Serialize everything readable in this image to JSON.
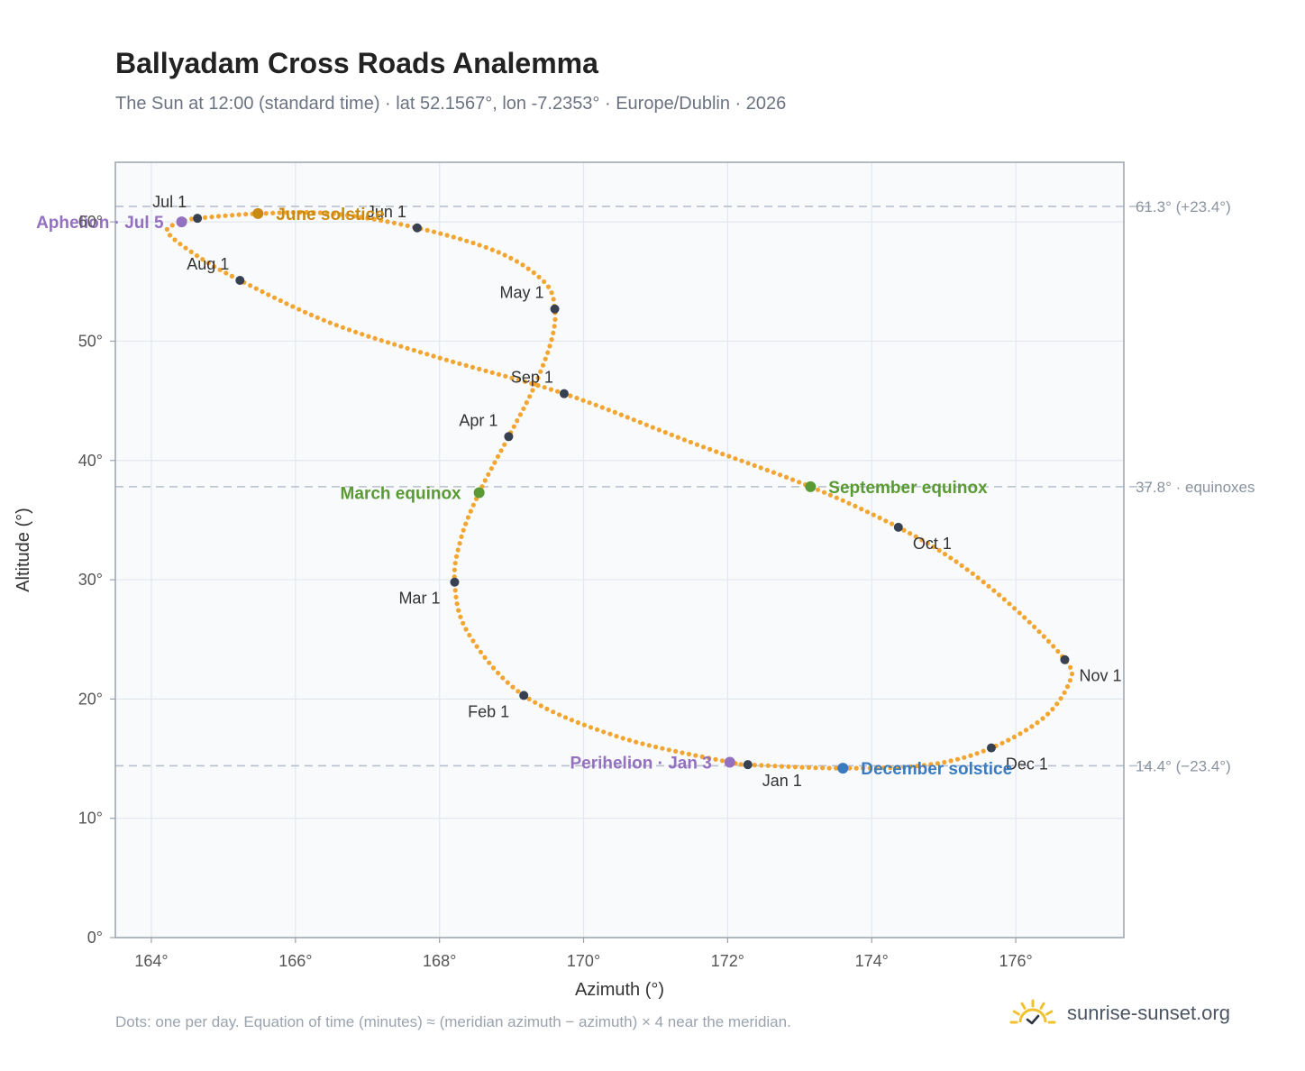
{
  "title": "Ballyadam Cross Roads Analemma",
  "subtitle": "The Sun at 12:00 (standard time) · lat 52.1567°, lon -7.2353° · Europe/Dublin · 2026",
  "footnote": "Dots: one per day. Equation of time (minutes) ≈ (meridian azimuth − azimuth) × 4 near the meridian.",
  "brand": "sunrise-sunset.org",
  "colors": {
    "curve": "#f2a531",
    "month_marker": "#374151",
    "june_solstice": "#c98a10",
    "december_solstice": "#3a7bbf",
    "equinox": "#5a9a35",
    "apsis": "#9370c0",
    "reference_line": "#b8c0cc",
    "plot_bg": "#f8fafc",
    "grid": "#e3e8ee",
    "frame": "#9aa3ae",
    "logo": "#f2c12e"
  },
  "icons": {
    "brand_logo": "sun-check-icon"
  },
  "chart_data": {
    "type": "scatter",
    "title": "Ballyadam Cross Roads Analemma",
    "xlabel": "Azimuth (°)",
    "ylabel": "Altitude (°)",
    "xlim": [
      163.5,
      177.5
    ],
    "ylim": [
      0,
      65
    ],
    "xticks": [
      164,
      166,
      168,
      170,
      172,
      174,
      176
    ],
    "xtick_labels": [
      "164°",
      "166°",
      "168°",
      "170°",
      "172°",
      "174°",
      "176°"
    ],
    "yticks": [
      0,
      10,
      20,
      30,
      40,
      50,
      60
    ],
    "ytick_labels": [
      "0°",
      "10°",
      "20°",
      "30°",
      "40°",
      "50°",
      "60°"
    ],
    "grid": true,
    "reference_lines": [
      {
        "y": 61.3,
        "label": "61.3° (+23.4°)"
      },
      {
        "y": 37.8,
        "label": "37.8° · equinoxes"
      },
      {
        "y": 14.4,
        "label": "14.4° (−23.4°)"
      }
    ],
    "curve_anchors": [
      [
        172.28,
        14.5
      ],
      [
        173.6,
        14.2
      ],
      [
        174.8,
        14.5
      ],
      [
        175.66,
        15.9
      ],
      [
        176.4,
        18.5
      ],
      [
        176.75,
        21.5
      ],
      [
        176.68,
        23.3
      ],
      [
        176.0,
        27.5
      ],
      [
        175.2,
        31.4
      ],
      [
        174.37,
        34.4
      ],
      [
        173.15,
        37.8
      ],
      [
        171.5,
        41.5
      ],
      [
        169.73,
        45.6
      ],
      [
        168.0,
        48.6
      ],
      [
        166.5,
        51.5
      ],
      [
        165.23,
        55.1
      ],
      [
        164.6,
        57.3
      ],
      [
        164.22,
        59.2
      ],
      [
        164.42,
        60.0
      ],
      [
        164.64,
        60.3
      ],
      [
        165.5,
        60.7
      ],
      [
        166.5,
        60.7
      ],
      [
        167.69,
        59.5
      ],
      [
        168.8,
        57.5
      ],
      [
        169.45,
        55.0
      ],
      [
        169.6,
        52.7
      ],
      [
        169.55,
        50.0
      ],
      [
        169.3,
        46.0
      ],
      [
        168.96,
        42.0
      ],
      [
        168.55,
        37.3
      ],
      [
        168.3,
        33.5
      ],
      [
        168.21,
        29.8
      ],
      [
        168.4,
        25.5
      ],
      [
        169.17,
        20.3
      ],
      [
        170.5,
        16.8
      ],
      [
        172.03,
        14.7
      ],
      [
        172.28,
        14.5
      ]
    ],
    "month_markers": [
      {
        "label": "Jan 1",
        "az": 172.28,
        "alt": 14.5,
        "side": "below-right"
      },
      {
        "label": "Feb 1",
        "az": 169.17,
        "alt": 20.3,
        "side": "below-left"
      },
      {
        "label": "Mar 1",
        "az": 168.21,
        "alt": 29.8,
        "side": "below-left"
      },
      {
        "label": "Apr 1",
        "az": 168.96,
        "alt": 42.0,
        "side": "above-left"
      },
      {
        "label": "May 1",
        "az": 169.6,
        "alt": 52.7,
        "side": "above-left"
      },
      {
        "label": "Jun 1",
        "az": 167.69,
        "alt": 59.5,
        "side": "above-left"
      },
      {
        "label": "Jul 1",
        "az": 164.64,
        "alt": 60.3,
        "side": "above-left"
      },
      {
        "label": "Aug 1",
        "az": 165.23,
        "alt": 55.1,
        "side": "above-left"
      },
      {
        "label": "Sep 1",
        "az": 169.73,
        "alt": 45.6,
        "side": "above-left"
      },
      {
        "label": "Oct 1",
        "az": 174.37,
        "alt": 34.4,
        "side": "below-right"
      },
      {
        "label": "Nov 1",
        "az": 176.68,
        "alt": 23.3,
        "side": "below-right"
      },
      {
        "label": "Dec 1",
        "az": 175.66,
        "alt": 15.9,
        "side": "below-right"
      }
    ],
    "events": [
      {
        "label": "June solstice",
        "az": 165.48,
        "alt": 60.7,
        "color_key": "june_solstice",
        "side": "right"
      },
      {
        "label": "December solstice",
        "az": 173.6,
        "alt": 14.2,
        "color_key": "december_solstice",
        "side": "right"
      },
      {
        "label": "March equinox",
        "az": 168.55,
        "alt": 37.3,
        "color_key": "equinox",
        "side": "left"
      },
      {
        "label": "September equinox",
        "az": 173.15,
        "alt": 37.8,
        "color_key": "equinox",
        "side": "right"
      },
      {
        "label": "Aphelion · Jul 5",
        "az": 164.42,
        "alt": 60.0,
        "color_key": "apsis",
        "side": "left"
      },
      {
        "label": "Perihelion · Jan 3",
        "az": 172.03,
        "alt": 14.7,
        "color_key": "apsis",
        "side": "left"
      }
    ]
  }
}
